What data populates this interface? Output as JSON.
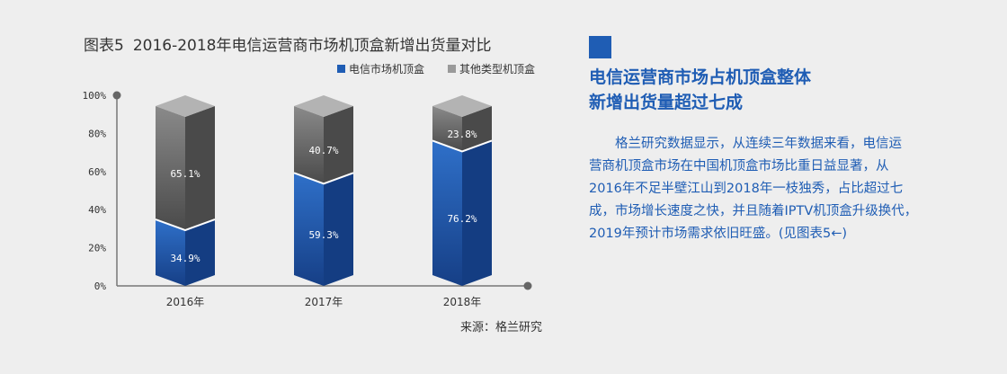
{
  "figure": {
    "label": "图表5",
    "title": "2016-2018年电信运营商市场机顶盒新增出货量对比",
    "source": "来源：格兰研究"
  },
  "chart_data": {
    "type": "bar",
    "stacked": true,
    "categories": [
      "2016年",
      "2017年",
      "2018年"
    ],
    "series": [
      {
        "name": "电信市场机顶盒",
        "values": [
          34.9,
          59.3,
          76.2
        ],
        "labels": [
          "34.9%",
          "59.3%",
          "76.2%"
        ],
        "color": "#1f5db4"
      },
      {
        "name": "其他类型机顶盒",
        "values": [
          65.1,
          40.7,
          23.8
        ],
        "labels": [
          "65.1%",
          "40.7%",
          "23.8%"
        ],
        "color": "#707070"
      }
    ],
    "yticks": [
      "0%",
      "20%",
      "40%",
      "60%",
      "80%",
      "100%"
    ],
    "ylim": [
      0,
      100
    ],
    "legend_position": "top-right",
    "grid": false
  },
  "article": {
    "headline_lines": [
      "电信运营商市场占机顶盒整体",
      "新增出货量超过七成"
    ],
    "body_lines": [
      "格兰研究数据显示，从连续三年数据来看，电信运",
      "营商机顶盒市场在中国机顶盒市场比重日益显著，从",
      "2016年不足半壁江山到2018年一枝独秀，占比超过七",
      "成，市场增长速度之快，并且随着IPTV机顶盒升级换代，",
      "2019年预计市场需求依旧旺盛。(见图表5←)"
    ]
  },
  "colors": {
    "accent": "#1f5db4",
    "legend_blue": "#1f5db4",
    "legend_gray": "#9a9a9a"
  }
}
